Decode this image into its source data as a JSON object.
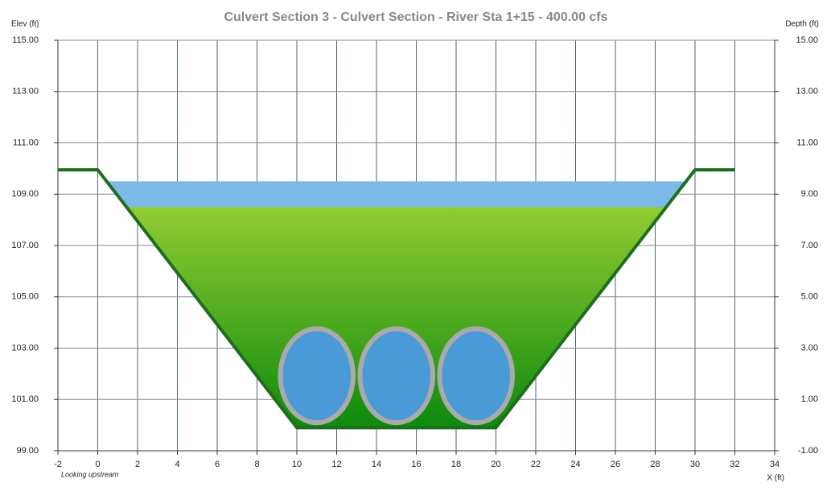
{
  "chart_data": {
    "type": "cross-section",
    "title": "Culvert Section 3 - Culvert Section - River Sta 1+15 - 400.00 cfs",
    "y_label": "Elev (ft)",
    "y2_label": "Depth (ft)",
    "x_label": "X (ft)",
    "annotation": "Looking upstream",
    "xlim": [
      -2,
      34
    ],
    "xticks": [
      -2,
      0,
      2,
      4,
      6,
      8,
      10,
      12,
      14,
      16,
      18,
      20,
      22,
      24,
      26,
      28,
      30,
      32,
      34
    ],
    "ylim": [
      99,
      115
    ],
    "yticks": [
      {
        "value": 99,
        "label": "99.00"
      },
      {
        "value": 101,
        "label": "101.00"
      },
      {
        "value": 103,
        "label": "103.00"
      },
      {
        "value": 105,
        "label": "105.00"
      },
      {
        "value": 107,
        "label": "107.00"
      },
      {
        "value": 109,
        "label": "109.00"
      },
      {
        "value": 111,
        "label": "111.00"
      },
      {
        "value": 113,
        "label": "113.00"
      },
      {
        "value": 115,
        "label": "115.00"
      }
    ],
    "y2lim": [
      -1,
      15
    ],
    "y2ticks": [
      {
        "value": -1,
        "label": "-1.00"
      },
      {
        "value": 1,
        "label": "1.00"
      },
      {
        "value": 3,
        "label": "3.00"
      },
      {
        "value": 5,
        "label": "5.00"
      },
      {
        "value": 7,
        "label": "7.00"
      },
      {
        "value": 9,
        "label": "9.00"
      },
      {
        "value": 11,
        "label": "11.00"
      },
      {
        "value": 13,
        "label": "13.00"
      },
      {
        "value": 15,
        "label": "15.00"
      }
    ],
    "grid": true,
    "ground": {
      "color": "#1e6e1e",
      "x": [
        -2,
        0,
        10,
        20,
        30,
        32
      ],
      "y": [
        109.95,
        109.95,
        99.9,
        99.9,
        109.95,
        109.95
      ]
    },
    "water_surface": {
      "color": "#7db9e8",
      "elevation": 109.5
    },
    "flow": {
      "color_top": "#92cc32",
      "color_bottom": "#0d8a0d",
      "elevation": 108.5
    },
    "culverts": {
      "color": "#4a9ad8",
      "rim_color": "#aaaaaa",
      "centers": [
        11,
        15,
        19
      ],
      "invert": 100,
      "span": 3.9,
      "rise": 3.85
    }
  }
}
